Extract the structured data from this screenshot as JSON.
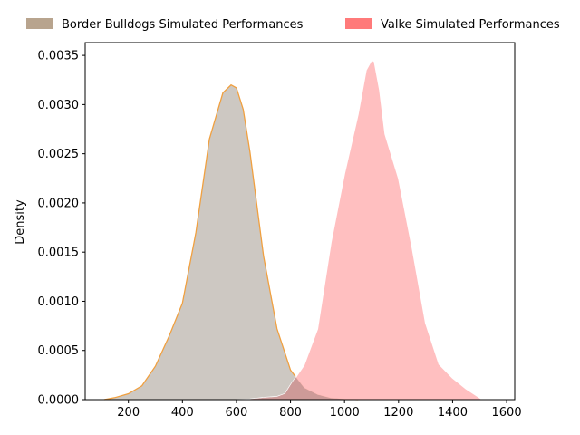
{
  "chart_data": {
    "type": "area",
    "title": "",
    "xlabel": "",
    "ylabel": "Density",
    "xlim": [
      40,
      1630
    ],
    "ylim": [
      0,
      0.00363
    ],
    "x_ticks": [
      200,
      400,
      600,
      800,
      1000,
      1200,
      1400,
      1600
    ],
    "y_ticks": [
      0,
      0.0005,
      0.001,
      0.0015,
      0.002,
      0.0025,
      0.003,
      0.0035
    ],
    "x_tick_labels": [
      "200",
      "400",
      "600",
      "800",
      "1000",
      "1200",
      "1400",
      "1600"
    ],
    "y_tick_labels": [
      "0.0000",
      "0.0005",
      "0.0010",
      "0.0015",
      "0.0020",
      "0.0025",
      "0.0030",
      "0.0035"
    ],
    "grid": false,
    "legend_position": "top",
    "series": [
      {
        "name": "Border Bulldogs Simulated Performances",
        "fill_color": "#cdc8c2",
        "line_color": "#f0a040",
        "legend_color": "#b8a48e",
        "x": [
          110,
          150,
          200,
          250,
          300,
          350,
          400,
          450,
          500,
          550,
          580,
          600,
          625,
          650,
          700,
          750,
          800,
          850,
          900,
          950,
          1000,
          1050
        ],
        "y": [
          0.0,
          2e-05,
          6e-05,
          0.00014,
          0.00034,
          0.00064,
          0.00098,
          0.0017,
          0.00265,
          0.00312,
          0.0032,
          0.00317,
          0.00295,
          0.00252,
          0.00146,
          0.00072,
          0.0003,
          0.00012,
          5e-05,
          1.5e-05,
          5e-06,
          0.0
        ]
      },
      {
        "name": "Valke Simulated Performances",
        "fill_color": "#ffbcbd",
        "line_color": "#ffffff",
        "legend_color": "#ff7a7a",
        "x": [
          600,
          650,
          700,
          750,
          780,
          800,
          850,
          900,
          950,
          1000,
          1050,
          1080,
          1100,
          1110,
          1130,
          1150,
          1200,
          1250,
          1300,
          1350,
          1400,
          1450,
          1500,
          1510
        ],
        "y": [
          0.0,
          5e-06,
          2e-05,
          3e-05,
          6e-05,
          0.00015,
          0.00035,
          0.00072,
          0.0016,
          0.0023,
          0.0029,
          0.00335,
          0.00345,
          0.00344,
          0.00315,
          0.0027,
          0.00225,
          0.00155,
          0.00078,
          0.00036,
          0.00022,
          0.00011,
          2e-05,
          0.0
        ]
      }
    ]
  }
}
